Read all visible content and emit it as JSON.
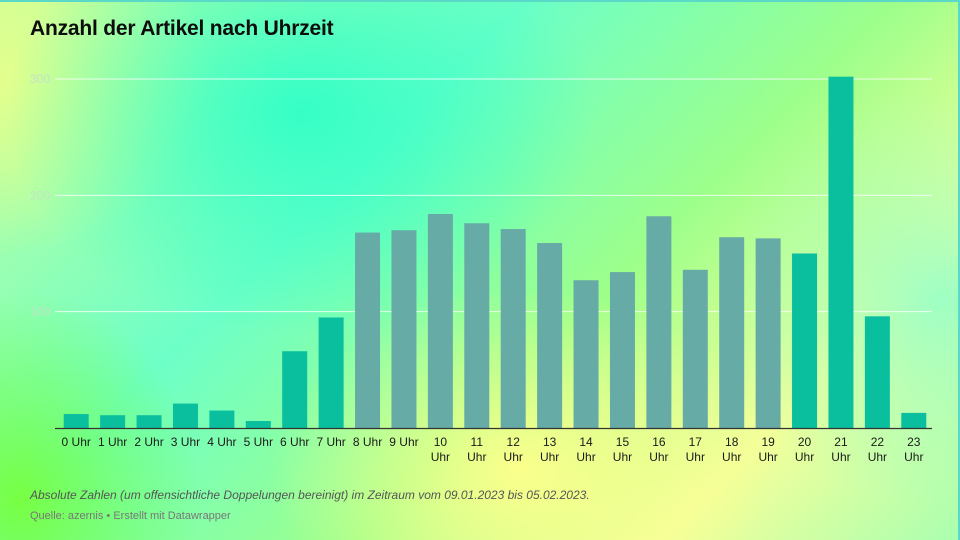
{
  "title": "Anzahl der Artikel nach Uhrzeit",
  "notes": "Absolute Zahlen (um offensichtliche Doppelungen bereinigt) im Zeitraum vom 09.01.2023 bis 05.02.2023.",
  "source": "Quelle: azernis • Erstellt mit Datawrapper",
  "colors": {
    "teal": "#0abf9e",
    "grey": "#66aba5",
    "gridline": "#ffffff",
    "tick_text": "#c4e2c6",
    "axis": "#333333"
  },
  "chart_data": {
    "type": "bar",
    "title": "Anzahl der Artikel nach Uhrzeit",
    "xlabel": "",
    "ylabel": "",
    "ylim": [
      0,
      300
    ],
    "yticks": [
      100,
      200,
      300
    ],
    "grid": true,
    "categories": [
      [
        "0 Uhr"
      ],
      [
        "1 Uhr"
      ],
      [
        "2 Uhr"
      ],
      [
        "3 Uhr"
      ],
      [
        "4 Uhr"
      ],
      [
        "5 Uhr"
      ],
      [
        "6 Uhr"
      ],
      [
        "7 Uhr"
      ],
      [
        "8 Uhr"
      ],
      [
        "9 Uhr"
      ],
      [
        "10",
        "Uhr"
      ],
      [
        "11",
        "Uhr"
      ],
      [
        "12",
        "Uhr"
      ],
      [
        "13",
        "Uhr"
      ],
      [
        "14",
        "Uhr"
      ],
      [
        "15",
        "Uhr"
      ],
      [
        "16",
        "Uhr"
      ],
      [
        "17",
        "Uhr"
      ],
      [
        "18",
        "Uhr"
      ],
      [
        "19",
        "Uhr"
      ],
      [
        "20",
        "Uhr"
      ],
      [
        "21",
        "Uhr"
      ],
      [
        "22",
        "Uhr"
      ],
      [
        "23",
        "Uhr"
      ]
    ],
    "values": [
      12,
      11,
      11,
      21,
      15,
      6,
      66,
      95,
      168,
      170,
      184,
      176,
      171,
      159,
      127,
      134,
      182,
      136,
      164,
      163,
      150,
      302,
      96,
      13
    ],
    "bar_colors": [
      "teal",
      "teal",
      "teal",
      "teal",
      "teal",
      "teal",
      "teal",
      "teal",
      "grey",
      "grey",
      "grey",
      "grey",
      "grey",
      "grey",
      "grey",
      "grey",
      "grey",
      "grey",
      "grey",
      "grey",
      "teal",
      "teal",
      "teal",
      "teal"
    ]
  }
}
